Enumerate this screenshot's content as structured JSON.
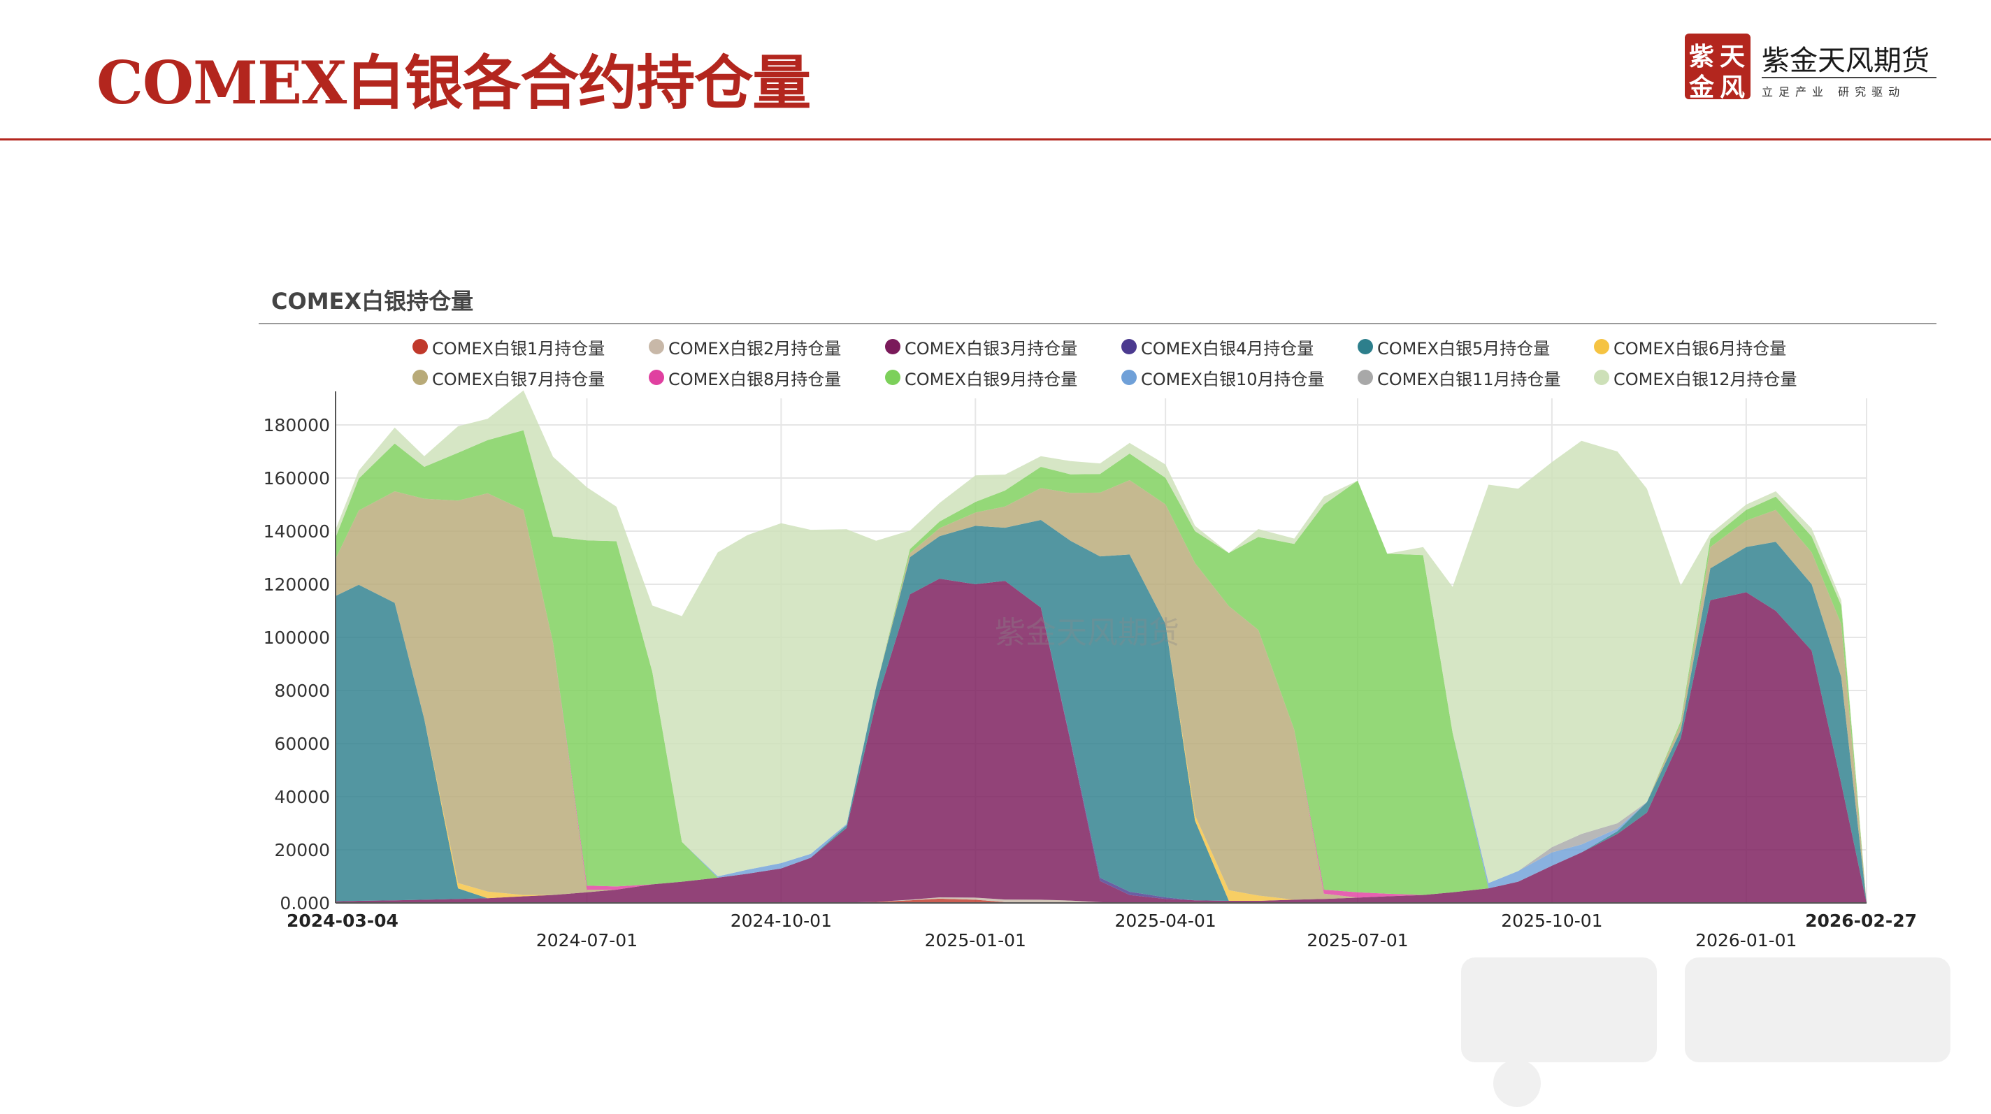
{
  "slide": {
    "title": "COMEX白银各合约持仓量",
    "brand_name": "紫金天风期货",
    "brand_slogan": "立足产业 研究驱动",
    "seal_chars": [
      "紫",
      "天",
      "金",
      "风"
    ],
    "accent_color": "#b3261e"
  },
  "chart_data": {
    "type": "area",
    "stacked": true,
    "title": "COMEX白银持仓量",
    "watermark": "紫金天风期货",
    "ylim": [
      0,
      190000
    ],
    "y_ticks": [
      "0.000",
      "20000",
      "40000",
      "60000",
      "80000",
      "100000",
      "120000",
      "140000",
      "160000",
      "180000"
    ],
    "x_ticks": [
      "2024-03-04",
      "2024-07-01",
      "2024-10-01",
      "2025-01-01",
      "2025-04-01",
      "2025-07-01",
      "2025-10-01",
      "2026-01-01",
      "2026-02-27"
    ],
    "legend_position": "top",
    "grid": true,
    "x": [
      "2024-03-04",
      "2024-03-15",
      "2024-04-01",
      "2024-04-15",
      "2024-05-01",
      "2024-05-15",
      "2024-06-01",
      "2024-06-15",
      "2024-07-01",
      "2024-07-15",
      "2024-08-01",
      "2024-08-15",
      "2024-09-01",
      "2024-09-15",
      "2024-10-01",
      "2024-10-15",
      "2024-11-01",
      "2024-11-15",
      "2024-12-01",
      "2024-12-15",
      "2025-01-01",
      "2025-01-15",
      "2025-02-01",
      "2025-02-15",
      "2025-03-01",
      "2025-03-15",
      "2025-04-01",
      "2025-04-15",
      "2025-05-01",
      "2025-05-15",
      "2025-06-01",
      "2025-06-15",
      "2025-07-01",
      "2025-07-15",
      "2025-08-01",
      "2025-08-15",
      "2025-09-01",
      "2025-09-15",
      "2025-10-01",
      "2025-10-15",
      "2025-11-01",
      "2025-11-15",
      "2025-12-01",
      "2025-12-15",
      "2026-01-01",
      "2026-01-15",
      "2026-02-01",
      "2026-02-15",
      "2026-02-27"
    ],
    "series": [
      {
        "name": "COMEX白银1月持仓量",
        "color": "#c0392b",
        "values": [
          0,
          0,
          0,
          0,
          0,
          0,
          0,
          0,
          0,
          0,
          0,
          0,
          0,
          0,
          0,
          0,
          200,
          400,
          1000,
          1600,
          1200,
          300,
          0,
          0,
          0,
          0,
          0,
          0,
          0,
          0,
          0,
          0,
          0,
          0,
          0,
          0,
          0,
          0,
          0,
          0,
          0,
          0,
          0,
          0,
          0,
          0,
          0,
          0,
          0
        ]
      },
      {
        "name": "COMEX白银2月持仓量",
        "color": "#c8b8a8",
        "values": [
          0,
          0,
          0,
          0,
          0,
          0,
          0,
          0,
          0,
          0,
          0,
          0,
          0,
          0,
          0,
          0,
          0,
          0,
          200,
          500,
          800,
          1000,
          1200,
          900,
          300,
          0,
          0,
          0,
          0,
          0,
          0,
          0,
          0,
          0,
          0,
          0,
          0,
          0,
          0,
          0,
          0,
          0,
          0,
          0,
          0,
          0,
          0,
          0,
          0
        ]
      },
      {
        "name": "COMEX白银3月持仓量",
        "color": "#7a1a5a",
        "values": [
          600,
          800,
          1000,
          1200,
          1500,
          1800,
          2500,
          3000,
          4000,
          5000,
          7000,
          8000,
          9500,
          11000,
          13000,
          17000,
          28000,
          75000,
          115000,
          120000,
          118000,
          120000,
          110000,
          60000,
          8000,
          3000,
          1500,
          1000,
          800,
          800,
          1200,
          1500,
          2000,
          2500,
          3000,
          4000,
          5500,
          8000,
          14000,
          19000,
          26000,
          34000,
          62000,
          114000,
          117000,
          110000,
          95000,
          45000,
          0
        ]
      },
      {
        "name": "COMEX白银4月持仓量",
        "color": "#4b3a8f",
        "values": [
          0,
          0,
          0,
          0,
          0,
          0,
          0,
          0,
          0,
          0,
          0,
          0,
          0,
          0,
          0,
          0,
          0,
          0,
          0,
          0,
          0,
          0,
          0,
          500,
          1200,
          1200,
          600,
          0,
          0,
          0,
          0,
          0,
          0,
          0,
          0,
          0,
          0,
          0,
          0,
          0,
          0,
          0,
          0,
          0,
          0,
          0,
          0,
          0,
          0
        ]
      },
      {
        "name": "COMEX白银5月持仓量",
        "color": "#2d7f8c",
        "values": [
          115000,
          119000,
          112000,
          68000,
          4000,
          0,
          0,
          0,
          0,
          0,
          0,
          0,
          0,
          0,
          0,
          0,
          1000,
          6000,
          14000,
          16000,
          22000,
          20000,
          33000,
          75000,
          121000,
          127000,
          103000,
          30000,
          0,
          0,
          0,
          0,
          0,
          0,
          0,
          0,
          0,
          0,
          0,
          0,
          1000,
          4000,
          3000,
          12000,
          17000,
          26000,
          25000,
          40000,
          0
        ]
      },
      {
        "name": "COMEX白银6月持仓量",
        "color": "#f5c342",
        "values": [
          0,
          0,
          0,
          0,
          2000,
          2500,
          500,
          0,
          0,
          0,
          0,
          0,
          0,
          0,
          0,
          0,
          0,
          0,
          0,
          0,
          0,
          0,
          0,
          0,
          0,
          0,
          0,
          2000,
          4000,
          2000,
          0,
          0,
          0,
          0,
          0,
          0,
          0,
          0,
          0,
          0,
          0,
          0,
          0,
          0,
          0,
          0,
          0,
          0,
          0
        ]
      },
      {
        "name": "COMEX白银7月持仓量",
        "color": "#b8aa78",
        "values": [
          14000,
          28000,
          42000,
          83000,
          144000,
          150000,
          145000,
          95000,
          1000,
          0,
          0,
          0,
          0,
          0,
          0,
          0,
          0,
          0,
          1500,
          3000,
          5000,
          8000,
          12000,
          18000,
          24000,
          28000,
          45000,
          95000,
          107000,
          100000,
          64000,
          2000,
          0,
          0,
          0,
          0,
          0,
          0,
          0,
          0,
          0,
          0,
          2500,
          8000,
          10000,
          12000,
          12000,
          20000,
          0
        ]
      },
      {
        "name": "COMEX白银8月持仓量",
        "color": "#e040a0",
        "values": [
          0,
          0,
          0,
          0,
          0,
          0,
          0,
          0,
          1500,
          1200,
          0,
          0,
          0,
          0,
          0,
          0,
          0,
          0,
          0,
          0,
          0,
          0,
          0,
          0,
          0,
          0,
          0,
          0,
          0,
          0,
          0,
          1500,
          2000,
          1000,
          0,
          0,
          0,
          0,
          0,
          0,
          0,
          0,
          0,
          0,
          0,
          0,
          0,
          0,
          0
        ]
      },
      {
        "name": "COMEX白银9月持仓量",
        "color": "#7cd05a",
        "values": [
          8000,
          12000,
          18000,
          12000,
          18000,
          20000,
          30000,
          40000,
          130000,
          130000,
          80000,
          15000,
          0,
          0,
          0,
          0,
          0,
          0,
          1500,
          2500,
          4000,
          6000,
          8000,
          7000,
          7000,
          10000,
          10000,
          12000,
          20000,
          35000,
          70000,
          145000,
          155000,
          128000,
          128000,
          60000,
          0,
          0,
          0,
          0,
          0,
          0,
          1000,
          3000,
          4000,
          5000,
          6000,
          7000,
          0
        ]
      },
      {
        "name": "COMEX白银10月持仓量",
        "color": "#6fa0d8",
        "values": [
          0,
          0,
          0,
          0,
          0,
          0,
          0,
          0,
          0,
          0,
          0,
          0,
          500,
          1500,
          2000,
          1500,
          500,
          0,
          0,
          0,
          0,
          0,
          0,
          0,
          0,
          0,
          0,
          0,
          0,
          0,
          0,
          0,
          0,
          0,
          0,
          0,
          2000,
          4000,
          5000,
          3000,
          1000,
          0,
          0,
          0,
          0,
          0,
          0,
          0,
          0
        ]
      },
      {
        "name": "COMEX白银11月持仓量",
        "color": "#a8a8a8",
        "values": [
          0,
          0,
          0,
          0,
          0,
          0,
          0,
          0,
          0,
          0,
          0,
          0,
          0,
          0,
          0,
          0,
          0,
          0,
          0,
          0,
          0,
          0,
          0,
          0,
          0,
          0,
          0,
          0,
          0,
          0,
          0,
          0,
          0,
          0,
          0,
          0,
          0,
          0,
          2000,
          4000,
          2000,
          0,
          0,
          0,
          0,
          0,
          0,
          0,
          0
        ]
      },
      {
        "name": "COMEX白银12月持仓量",
        "color": "#cde0b8",
        "values": [
          3000,
          3000,
          6000,
          4000,
          10000,
          8000,
          15000,
          30000,
          20000,
          13000,
          25000,
          85000,
          122000,
          126000,
          128000,
          122000,
          111000,
          55000,
          7000,
          7000,
          10000,
          6000,
          4000,
          5000,
          4000,
          4000,
          5000,
          2000,
          0,
          3000,
          2000,
          3000,
          0,
          0,
          3000,
          55000,
          150000,
          144000,
          145000,
          148000,
          140000,
          118000,
          51000,
          2000,
          2000,
          2000,
          3000,
          2000,
          0
        ]
      }
    ]
  }
}
